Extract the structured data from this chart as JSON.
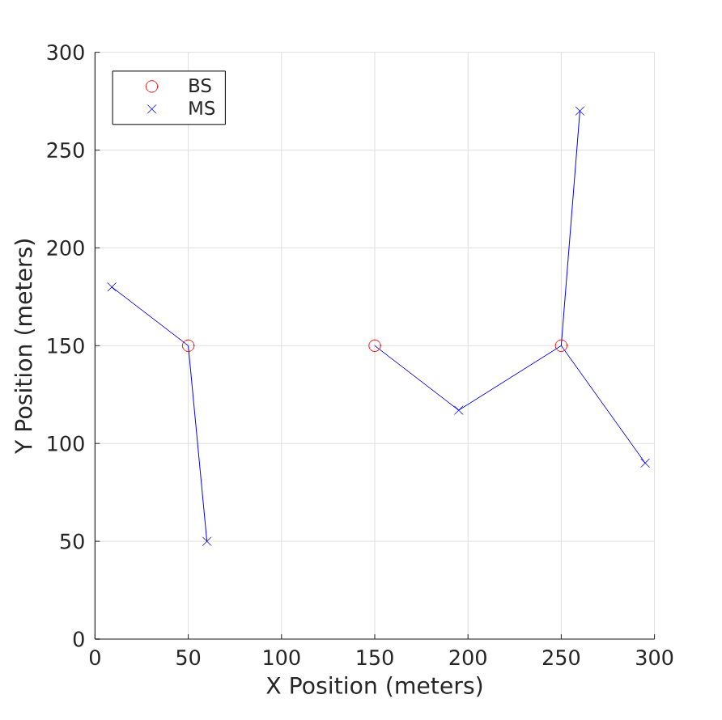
{
  "chart_data": {
    "type": "scatter",
    "xlabel": "X Position (meters)",
    "ylabel": "Y Position (meters)",
    "xlim": [
      0,
      300
    ],
    "ylim": [
      0,
      300
    ],
    "xticks": [
      0,
      50,
      100,
      150,
      200,
      250,
      300
    ],
    "yticks": [
      0,
      50,
      100,
      150,
      200,
      250,
      300
    ],
    "grid": true,
    "legend": "top left",
    "series": [
      {
        "name": "BS",
        "color": "#ff0000",
        "marker": "circle",
        "x": [
          50,
          150,
          250
        ],
        "values": [
          150,
          150,
          150
        ]
      },
      {
        "name": "MS",
        "color": "#0000ff",
        "marker": "cross",
        "x": [
          9,
          60,
          195,
          260,
          295
        ],
        "values": [
          180,
          50,
          117,
          270,
          90
        ]
      },
      {
        "type": "line",
        "color": "#0000ff",
        "marker": "none",
        "line_style": "solid",
        "x": [
          9,
          50,
          60
        ],
        "values": [
          180,
          150,
          50
        ]
      },
      {
        "type": "line",
        "color": "#0000ff",
        "marker": "none",
        "line_style": "solid",
        "x": [
          150,
          195,
          250,
          260
        ],
        "values": [
          150,
          117,
          150,
          270
        ]
      },
      {
        "type": "line",
        "color": "#0000ff",
        "marker": "none",
        "line_style": "solid",
        "x": [
          250,
          295
        ],
        "values": [
          150,
          90
        ]
      }
    ]
  }
}
